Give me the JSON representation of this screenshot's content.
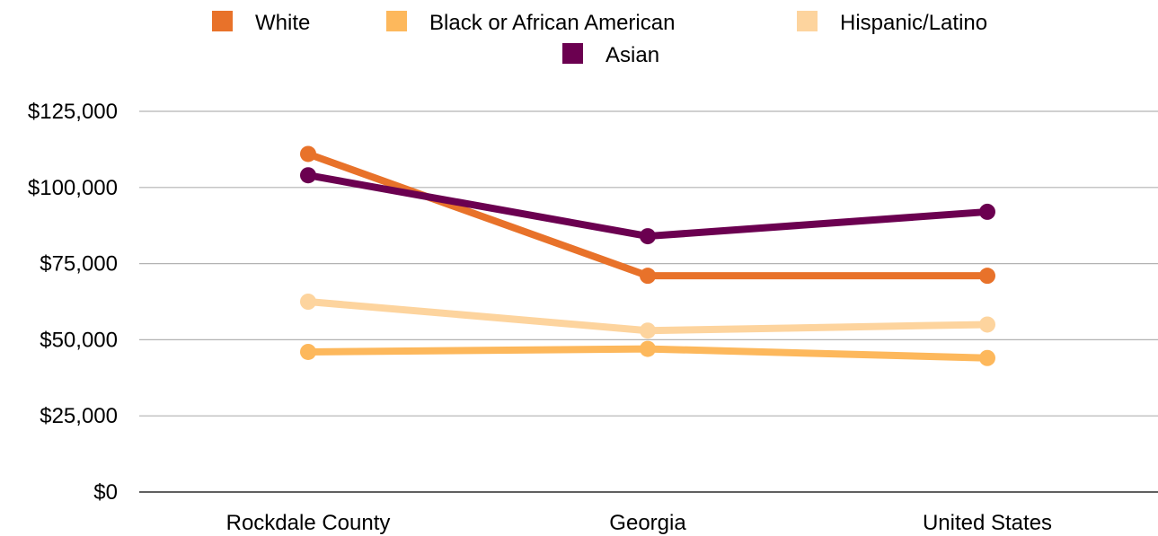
{
  "chart_data": {
    "type": "line",
    "categories": [
      "Rockdale County",
      "Georgia",
      "United States"
    ],
    "series": [
      {
        "name": "White",
        "color": "#e8722a",
        "values": [
          111000,
          71000,
          71000
        ]
      },
      {
        "name": "Black or African American",
        "color": "#fdb85c",
        "values": [
          46000,
          47000,
          44000
        ]
      },
      {
        "name": "Hispanic/Latino",
        "color": "#fdd49e",
        "values": [
          62500,
          53000,
          55000
        ]
      },
      {
        "name": "Asian",
        "color": "#6b0050",
        "values": [
          104000,
          84000,
          92000
        ]
      }
    ],
    "y_ticks": [
      "$0",
      "$25,000",
      "$50,000",
      "$75,000",
      "$100,000",
      "$125,000"
    ],
    "ylim": [
      0,
      125000
    ],
    "grid": true,
    "legend_position": "top"
  }
}
